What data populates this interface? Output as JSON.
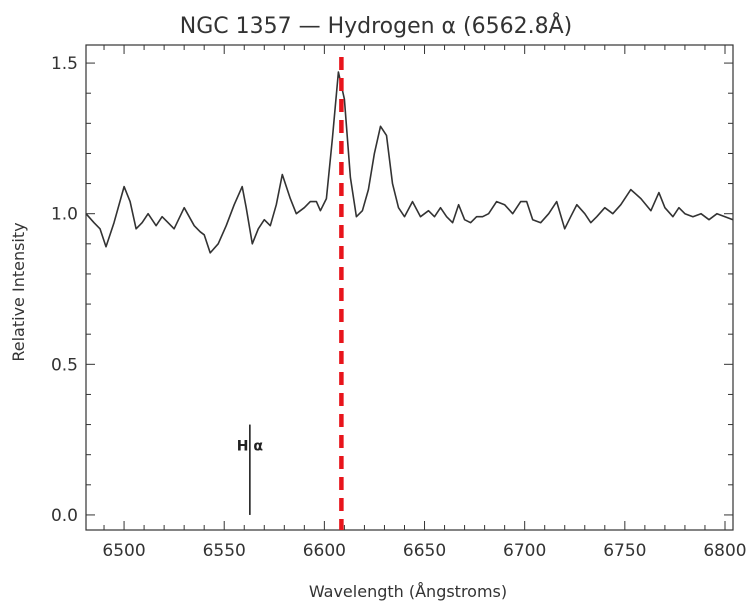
{
  "chart_data": {
    "type": "line",
    "title": "NGC 1357 — Hydrogen α (6562.8Å)",
    "xlabel": "Wavelength (Ångstroms)",
    "ylabel": "Relative Intensity",
    "xlim": [
      6481,
      6804
    ],
    "ylim": [
      -0.05,
      1.56
    ],
    "xticks": [
      6500,
      6550,
      6600,
      6650,
      6700,
      6750,
      6800
    ],
    "yticks": [
      0.0,
      0.5,
      1.0,
      1.5
    ],
    "ytick_labels": [
      "0.0",
      "0.5",
      "1.0",
      "1.5"
    ],
    "grid": false,
    "series": [
      {
        "color": "#333333",
        "x": [
          6481,
          6485,
          6488,
          6491,
          6495,
          6500,
          6503,
          6506,
          6509,
          6512,
          6516,
          6519,
          6522,
          6525,
          6530,
          6535,
          6538,
          6540,
          6543,
          6547,
          6551,
          6555,
          6559,
          6561,
          6564,
          6567,
          6570,
          6573,
          6576,
          6579,
          6583,
          6586,
          6590,
          6593,
          6596,
          6598,
          6601,
          6604,
          6607,
          6610,
          6613,
          6616,
          6619,
          6622,
          6625,
          6628,
          6631,
          6634,
          6637,
          6640,
          6644,
          6648,
          6652,
          6655,
          6658,
          6661,
          6664,
          6667,
          6670,
          6673,
          6676,
          6679,
          6682,
          6686,
          6690,
          6694,
          6698,
          6701,
          6704,
          6708,
          6712,
          6716,
          6720,
          6723,
          6726,
          6730,
          6733,
          6736,
          6740,
          6744,
          6748,
          6753,
          6758,
          6763,
          6767,
          6770,
          6774,
          6777,
          6780,
          6784,
          6788,
          6792,
          6796,
          6800,
          6804
        ],
        "y": [
          1.0,
          0.97,
          0.95,
          0.89,
          0.97,
          1.09,
          1.04,
          0.95,
          0.97,
          1.0,
          0.96,
          0.99,
          0.97,
          0.95,
          1.02,
          0.96,
          0.94,
          0.93,
          0.87,
          0.9,
          0.96,
          1.03,
          1.09,
          1.02,
          0.9,
          0.95,
          0.98,
          0.96,
          1.03,
          1.13,
          1.05,
          1.0,
          1.02,
          1.04,
          1.04,
          1.01,
          1.05,
          1.25,
          1.47,
          1.38,
          1.12,
          0.99,
          1.01,
          1.08,
          1.2,
          1.29,
          1.26,
          1.1,
          1.02,
          0.99,
          1.04,
          0.99,
          1.01,
          0.99,
          1.02,
          0.99,
          0.97,
          1.03,
          0.98,
          0.97,
          0.99,
          0.99,
          1.0,
          1.04,
          1.03,
          1.0,
          1.04,
          1.04,
          0.98,
          0.97,
          1.0,
          1.04,
          0.95,
          0.99,
          1.03,
          1.0,
          0.97,
          0.99,
          1.02,
          1.0,
          1.03,
          1.08,
          1.05,
          1.01,
          1.07,
          1.02,
          0.99,
          1.02,
          1.0,
          0.99,
          1.0,
          0.98,
          1.0,
          0.99,
          0.98
        ]
      }
    ],
    "annotations": [
      {
        "text": "H α",
        "x": 6562.8,
        "y_from": 0.0,
        "y_to": 0.3,
        "color": "#222222"
      }
    ],
    "reference_line": {
      "x": 6608.5,
      "style": "dashed",
      "color": "#e8141b"
    }
  }
}
